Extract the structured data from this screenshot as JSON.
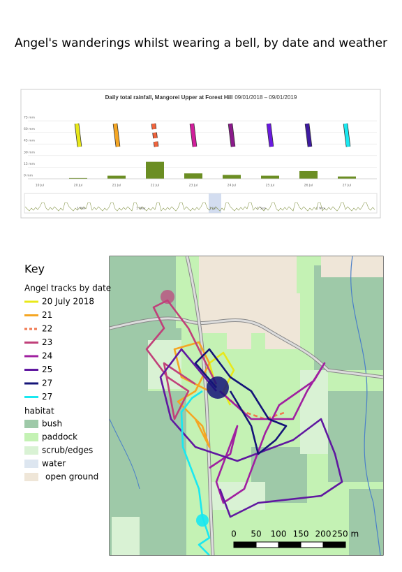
{
  "title": "Angel's wanderings whilst wearing a bell, by date and weather",
  "chart_data": {
    "type": "bar",
    "title": "Daily total rainfall, Mangorei Upper at Forest Hill",
    "subtitle": "09/01/2018 – 09/01/2019",
    "categories": [
      "10 Jul",
      "20 Jul",
      "21 Jul",
      "22 Jul",
      "23 Jul",
      "24 Jul",
      "25 Jul",
      "26 Jul",
      "27 Jul"
    ],
    "values": [
      null,
      1,
      4,
      22,
      7,
      5,
      4,
      10,
      3
    ],
    "color": "#6b8e23",
    "marker_colors": [
      null,
      "#e8e81a",
      "#f5a623",
      "#f0643c",
      "#d11e9b",
      "#8b1a8b",
      "#6a1ae0",
      "#3d1aa0",
      "#1ae8f0"
    ],
    "ylim": [
      0,
      80
    ],
    "yticks": [
      {
        "value": 0,
        "label": "0 mm"
      },
      {
        "value": 15,
        "label": "15 mm"
      },
      {
        "value": 30,
        "label": "30 mm"
      },
      {
        "value": 45,
        "label": "45 mm"
      },
      {
        "value": 60,
        "label": "60 mm"
      },
      {
        "value": 75,
        "label": "75 mm"
      }
    ],
    "grid": true,
    "navigator_labels": [
      "1 Mar",
      "1 May",
      "1 Jul",
      "1 Sep",
      "1 Nov"
    ]
  },
  "map": {
    "key_title": "Key",
    "tracks_title": "Angel tracks by date",
    "tracks": [
      {
        "label": "20 July 2018",
        "color": "#e8e81a",
        "dashed": false
      },
      {
        "label": "21",
        "color": "#f5a623",
        "dashed": false
      },
      {
        "label": "22",
        "color": "#f07850",
        "dashed": true
      },
      {
        "label": "23",
        "color": "#c0407a",
        "dashed": false
      },
      {
        "label": "24",
        "color": "#a020a0",
        "dashed": false
      },
      {
        "label": "25",
        "color": "#6018a0",
        "dashed": false
      },
      {
        "label": "27",
        "color": "#141478",
        "dashed": false
      },
      {
        "label": "27",
        "color": "#1ae8f0",
        "dashed": false
      }
    ],
    "habitat_title": "habitat",
    "habitat": [
      {
        "label": "bush",
        "color": "#9ec9a8"
      },
      {
        "label": "paddock",
        "color": "#c4f2b4"
      },
      {
        "label": "scrub/edges",
        "color": "#d9f2d4"
      },
      {
        "label": "water",
        "color": "#dde6f0"
      },
      {
        "label": "open ground",
        "color": "#efe6d8"
      }
    ],
    "scale_labels": [
      "0",
      "50",
      "100",
      "150",
      "200",
      "250 m"
    ]
  }
}
